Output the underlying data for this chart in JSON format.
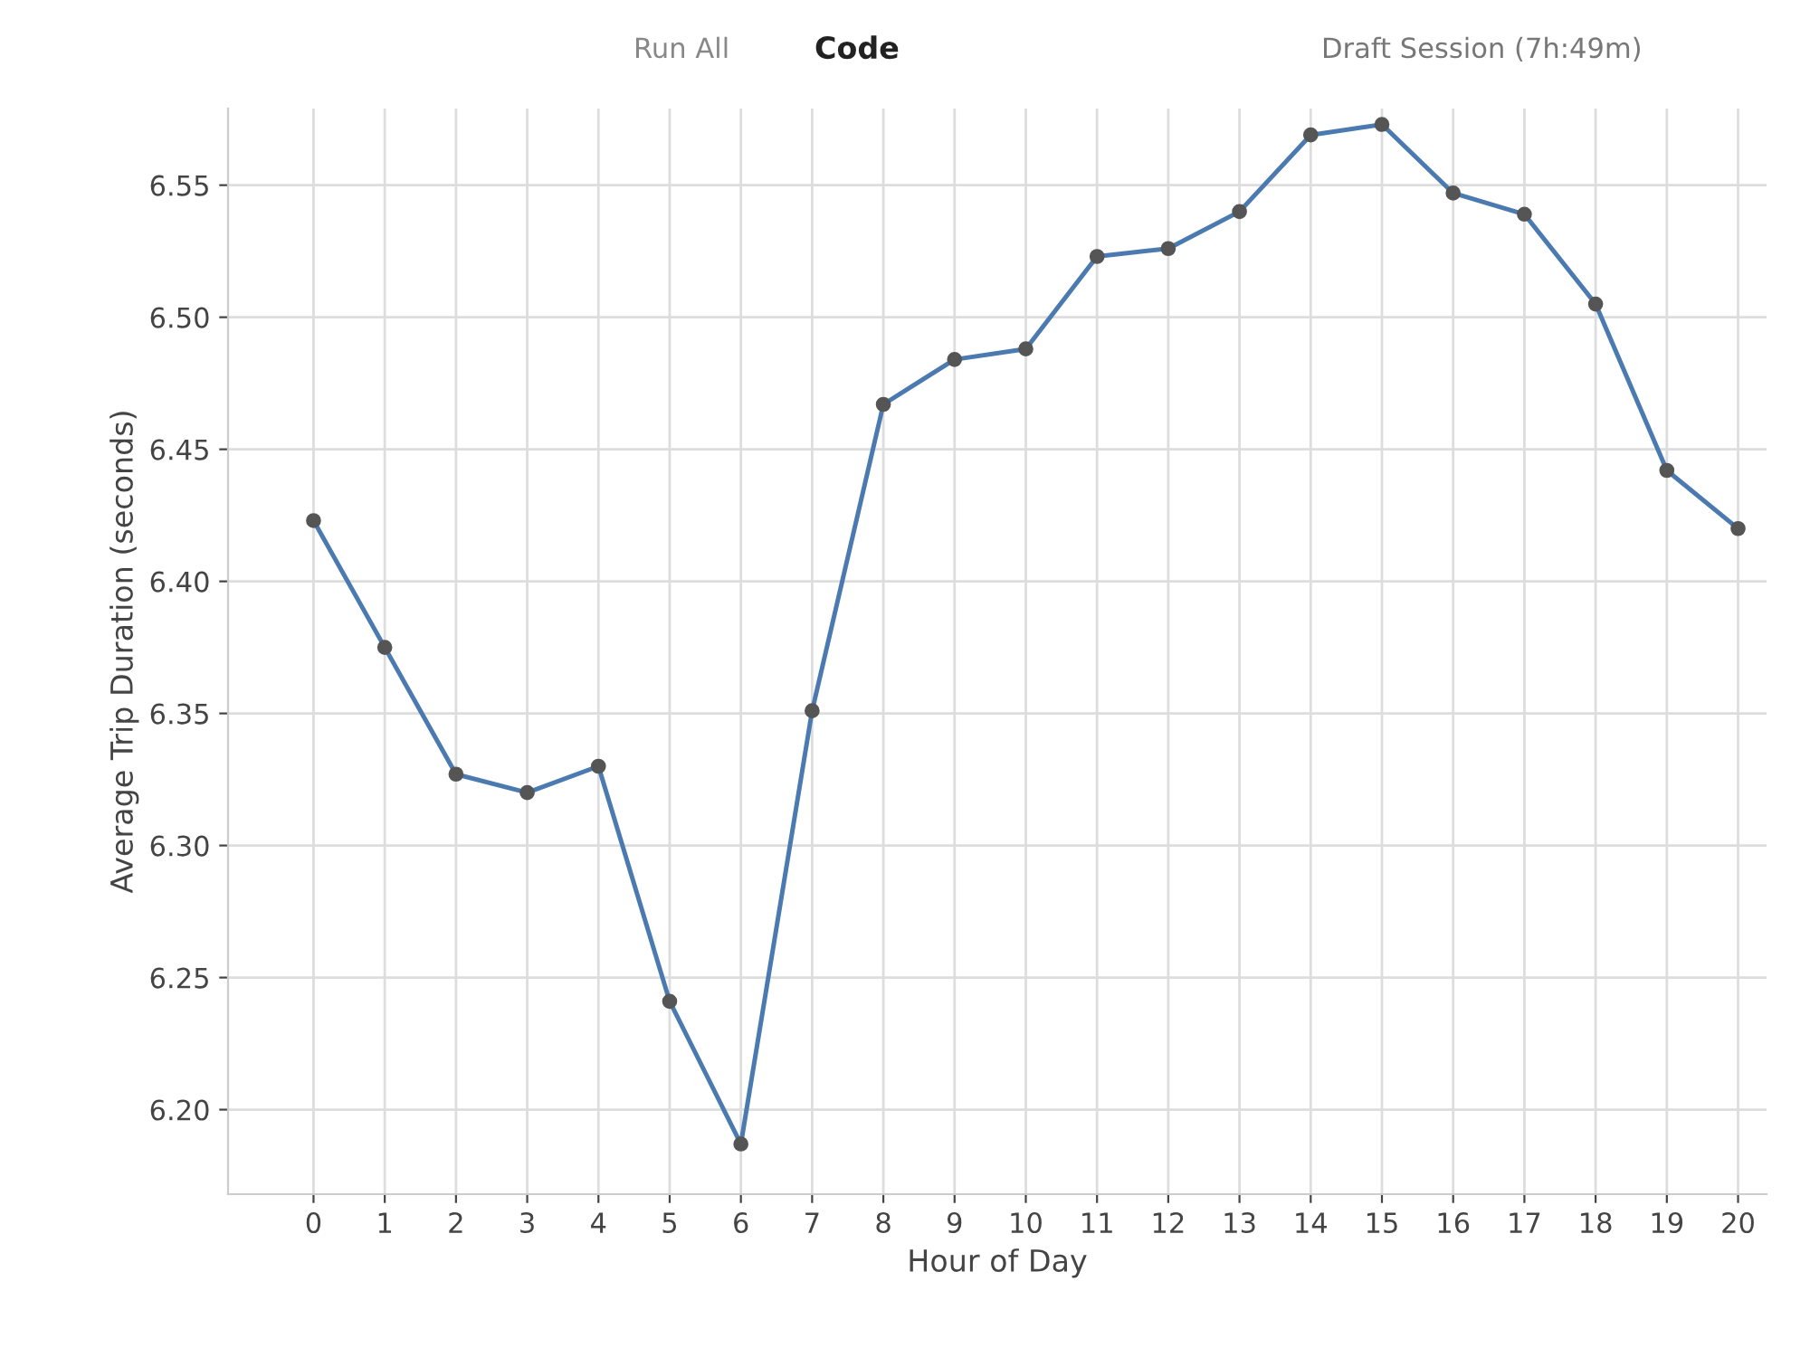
{
  "chart_data": {
    "type": "line",
    "xlabel": "Hour of Day",
    "ylabel": "Average Trip Duration (seconds)",
    "x": [
      0,
      1,
      2,
      3,
      4,
      5,
      6,
      7,
      8,
      9,
      10,
      11,
      12,
      13,
      14,
      15,
      16,
      17,
      18,
      19,
      20
    ],
    "series": [
      {
        "color": "#4a7ab0",
        "values": [
          6.423,
          6.375,
          6.327,
          6.32,
          6.33,
          6.241,
          6.187,
          6.351,
          6.467,
          6.484,
          6.488,
          6.523,
          6.526,
          6.54,
          6.569,
          6.573,
          6.547,
          6.539,
          6.505,
          6.442,
          6.42
        ]
      }
    ],
    "xlim": [
      -1.2,
      20.4
    ],
    "xticks": [
      0,
      1,
      2,
      3,
      4,
      5,
      6,
      7,
      8,
      9,
      10,
      11,
      12,
      13,
      14,
      15,
      16,
      17,
      18,
      19,
      20
    ],
    "ylim": [
      6.168,
      6.579
    ],
    "yticks": [
      {
        "value": 6.2,
        "label": "6.20"
      },
      6.25,
      {
        "value": 6.3,
        "label": "6.30"
      },
      6.35,
      {
        "value": 6.4,
        "label": "6.40"
      },
      6.45,
      {
        "value": 6.5,
        "label": "6.50"
      },
      6.55
    ],
    "grid": true,
    "marker": "circle",
    "line_style": "solid",
    "legend": false,
    "annotations": [
      "Run All",
      "Code",
      "Draft Session (7h:49m)"
    ]
  }
}
